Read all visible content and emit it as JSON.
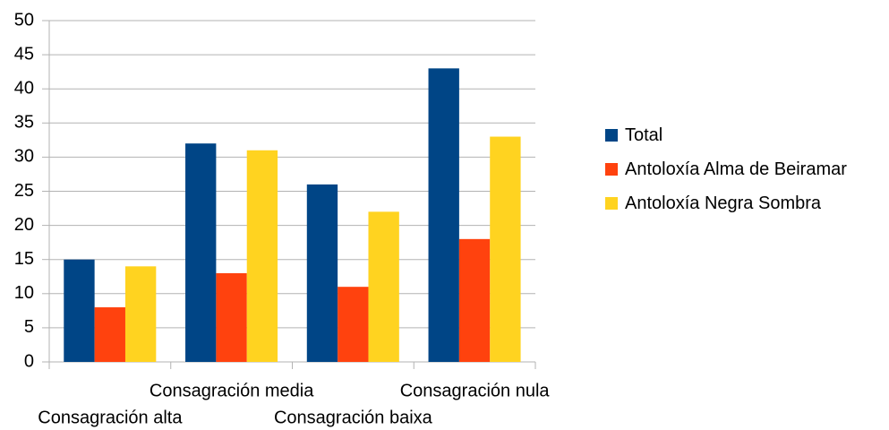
{
  "chart_data": {
    "type": "bar",
    "categories": [
      "Consagración alta",
      "Consagración media",
      "Consagración baixa",
      "Consagración nula"
    ],
    "series": [
      {
        "name": "Total",
        "color": "#004586",
        "values": [
          15,
          32,
          26,
          43
        ]
      },
      {
        "name": "Antoloxía Alma de Beiramar",
        "color": "#ff420e",
        "values": [
          8,
          13,
          11,
          18
        ]
      },
      {
        "name": "Antoloxía Negra Sombra",
        "color": "#ffd320",
        "values": [
          14,
          31,
          22,
          33
        ]
      }
    ],
    "ylim": [
      0,
      50
    ],
    "yticks": [
      0,
      5,
      10,
      15,
      20,
      25,
      30,
      35,
      40,
      45,
      50
    ],
    "grid": true,
    "legend": "right"
  }
}
